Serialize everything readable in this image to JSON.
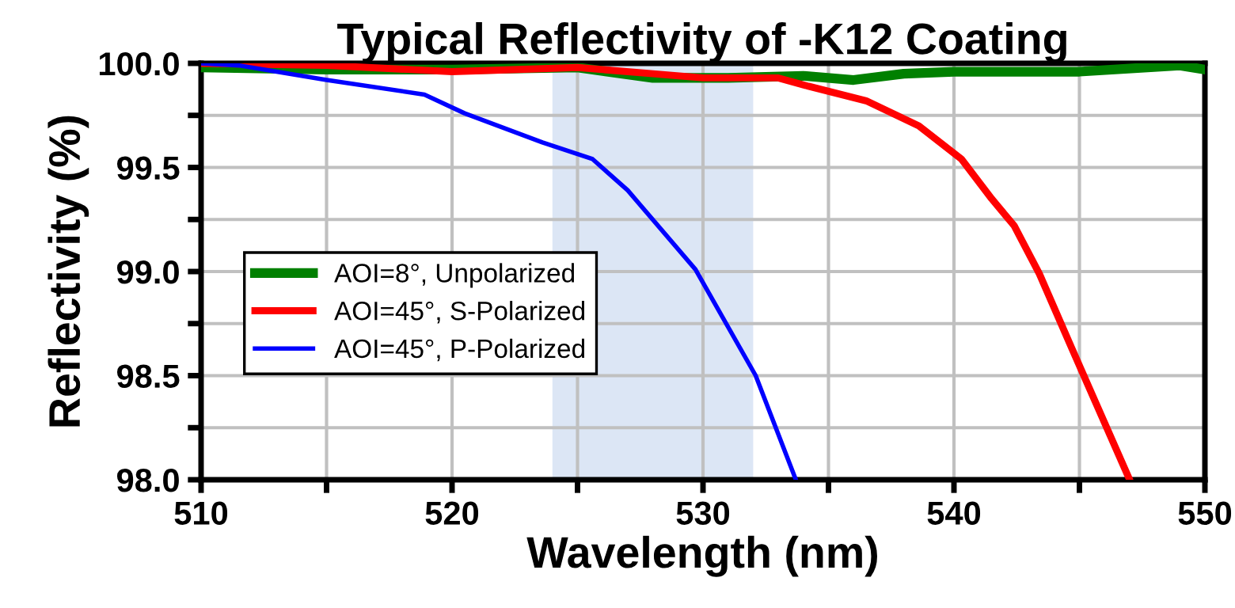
{
  "chart_data": {
    "type": "line",
    "title": "Typical Reflectivity of -K12 Coating",
    "xlabel": "Wavelength (nm)",
    "ylabel": "Reflectivity (%)",
    "xlim": [
      510,
      550
    ],
    "ylim": [
      98,
      100
    ],
    "xticks": [
      510,
      {
        "value": 515,
        "label": null
      },
      520,
      {
        "value": 525,
        "label": null
      },
      530,
      {
        "value": 535,
        "label": null
      },
      540,
      {
        "value": 545,
        "label": null
      },
      550
    ],
    "yticks": [
      {
        "value": 98,
        "label": "98.0"
      },
      {
        "value": 98.25,
        "label": null
      },
      98.5,
      {
        "value": 98.75,
        "label": null
      },
      {
        "value": 99,
        "label": "99.0"
      },
      {
        "value": 99.25,
        "label": null
      },
      99.5,
      {
        "value": 99.75,
        "label": null
      },
      {
        "value": 100,
        "label": "100.0"
      }
    ],
    "grid": true,
    "legend": "left",
    "line_style": "solid",
    "marker": "none",
    "bands": [
      {
        "axis": "x",
        "from": 524,
        "to": 532,
        "color": "#dce6f5"
      }
    ],
    "series": [
      {
        "name": "AOI=8°, Unpolarized",
        "color": "#008000",
        "x": [
          510,
          515,
          520,
          525,
          528,
          531,
          534,
          536,
          538,
          540,
          545,
          549,
          550
        ],
        "values": [
          99.98,
          99.97,
          99.97,
          99.98,
          99.93,
          99.93,
          99.94,
          99.92,
          99.95,
          99.96,
          99.96,
          99.99,
          99.97
        ]
      },
      {
        "name": "AOI=45°, S-Polarized",
        "color": "#ff0000",
        "x": [
          510,
          515,
          520,
          525,
          528,
          530,
          533,
          534.2,
          536.5,
          538.6,
          540.3,
          541.5,
          542.4,
          543.4,
          544.7,
          547.0
        ],
        "values": [
          100,
          99.99,
          99.96,
          99.98,
          99.95,
          99.93,
          99.93,
          99.89,
          99.82,
          99.7,
          99.54,
          99.35,
          99.22,
          98.99,
          98.63,
          98.0
        ]
      },
      {
        "name": "AOI=45°, P-Polarized",
        "color": "#0000ff",
        "x": [
          510,
          511.5,
          515,
          518.9,
          520.5,
          523.6,
          525.6,
          527.0,
          529.7,
          532.1,
          533.7
        ],
        "values": [
          100,
          99.99,
          99.92,
          99.85,
          99.76,
          99.62,
          99.54,
          99.39,
          99.01,
          98.5,
          98.0
        ]
      }
    ]
  }
}
